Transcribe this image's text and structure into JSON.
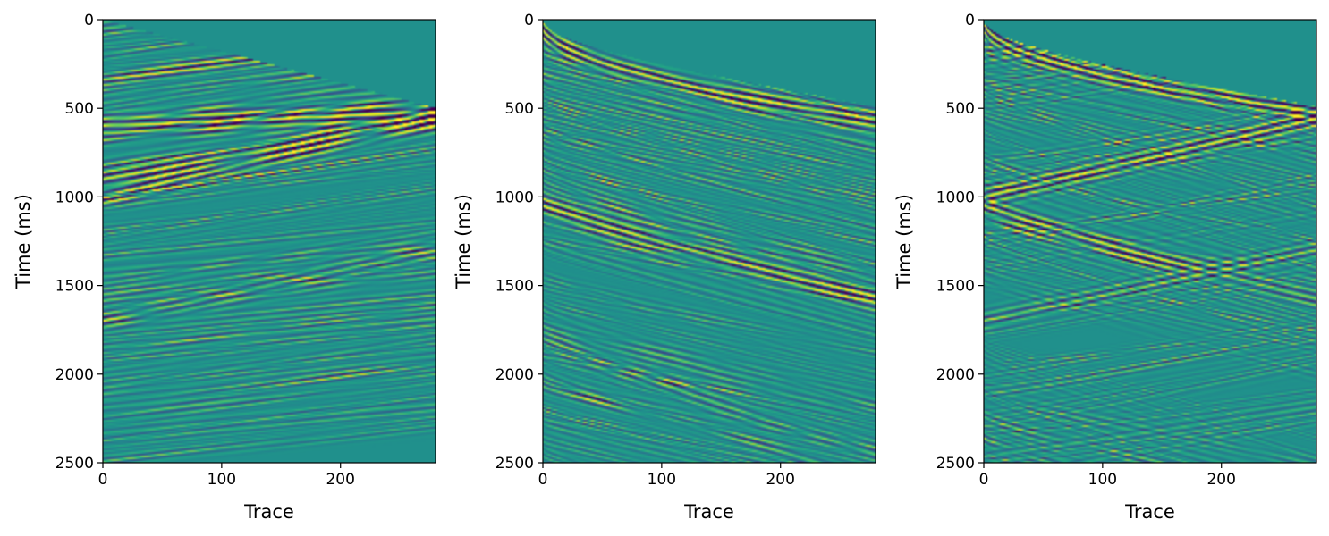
{
  "chart_data": [
    {
      "type": "heatmap",
      "xlabel": "Trace",
      "ylabel": "Time (ms)",
      "xlim": [
        0,
        280
      ],
      "ylim": [
        2500,
        0
      ],
      "y_inverted": true,
      "xticks": [
        0,
        100,
        200
      ],
      "yticks": [
        0,
        500,
        1000,
        1500,
        2000,
        2500
      ],
      "colormap": "viridis",
      "clip_range": [
        -1,
        1
      ],
      "muted_region": "above straight line from (0 traces, 0 ms) to (280 traces, 500 ms)",
      "events": [
        {
          "shape": "linear",
          "t0_ms": 600,
          "t_end_ms": 520,
          "strength": 1.0
        },
        {
          "shape": "linear",
          "t0_ms": 900,
          "t_end_ms": 560,
          "strength": 1.0
        },
        {
          "shape": "linear",
          "t0_ms": 1000,
          "t_end_ms": 560,
          "strength": 0.9
        },
        {
          "shape": "linear",
          "t0_ms": 1700,
          "t_end_ms": 1300,
          "strength": 0.6
        }
      ]
    },
    {
      "type": "heatmap",
      "xlabel": "Trace",
      "ylabel": "Time (ms)",
      "xlim": [
        0,
        280
      ],
      "ylim": [
        2500,
        0
      ],
      "y_inverted": true,
      "xticks": [
        0,
        100,
        200
      ],
      "yticks": [
        0,
        500,
        1000,
        1500,
        2000,
        2500
      ],
      "colormap": "viridis",
      "clip_range": [
        -1,
        1
      ],
      "muted_region": "above curve from (0 traces, 0 ms) to (280 traces, 490 ms)",
      "events": [
        {
          "shape": "curved",
          "t0_ms": 60,
          "t_end_ms": 560,
          "strength": 1.0
        },
        {
          "shape": "curved",
          "t0_ms": 1050,
          "t_end_ms": 1560,
          "strength": 1.0
        },
        {
          "shape": "curved",
          "t0_ms": 1800,
          "t_end_ms": 2450,
          "strength": 0.6
        }
      ]
    },
    {
      "type": "heatmap",
      "xlabel": "Trace",
      "ylabel": "Time (ms)",
      "xlim": [
        0,
        280
      ],
      "ylim": [
        2500,
        0
      ],
      "y_inverted": true,
      "xticks": [
        0,
        100,
        200
      ],
      "yticks": [
        0,
        500,
        1000,
        1500,
        2000,
        2500
      ],
      "colormap": "viridis",
      "clip_range": [
        -1,
        1
      ],
      "muted_region": "above curve from (0 traces, 0 ms) to (280 traces, 490 ms)",
      "events": [
        {
          "shape": "curved",
          "t0_ms": 20,
          "t_end_ms": 520,
          "strength": 1.0
        },
        {
          "shape": "rising",
          "t0_ms": 1000,
          "t_end_ms": 560,
          "strength": 1.0
        },
        {
          "shape": "curved",
          "t0_ms": 1050,
          "t_end_ms": 1570,
          "strength": 1.0
        },
        {
          "shape": "rising",
          "t0_ms": 1700,
          "t_end_ms": 1300,
          "strength": 0.7
        }
      ]
    }
  ]
}
